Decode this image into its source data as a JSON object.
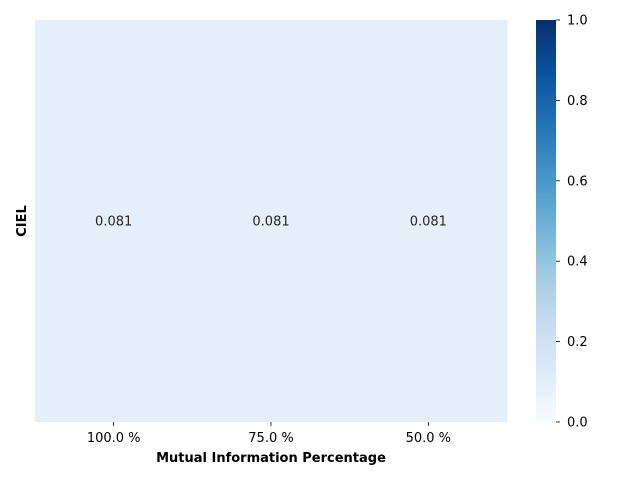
{
  "chart_data": {
    "type": "heatmap",
    "title": "",
    "xlabel": "Mutual Information Percentage",
    "ylabel": "CIEL",
    "x_categories": [
      "100.0 %",
      "75.0 %",
      "50.0 %"
    ],
    "y_categories": [
      ""
    ],
    "values": [
      [
        0.081,
        0.081,
        0.081
      ]
    ],
    "annotations": [
      "0.081",
      "0.081",
      "0.081"
    ],
    "colormap": "Blues",
    "vmin": 0.0,
    "vmax": 1.0,
    "colorbar_ticks": [
      "0.0",
      "0.2",
      "0.4",
      "0.6",
      "0.8",
      "1.0"
    ],
    "colors": {
      "cell_fill": "#e4eff9",
      "cmap_low": "#f7fbff",
      "cmap_high": "#08306b",
      "annotation_text": "#262626",
      "axis_text": "#000000"
    }
  }
}
